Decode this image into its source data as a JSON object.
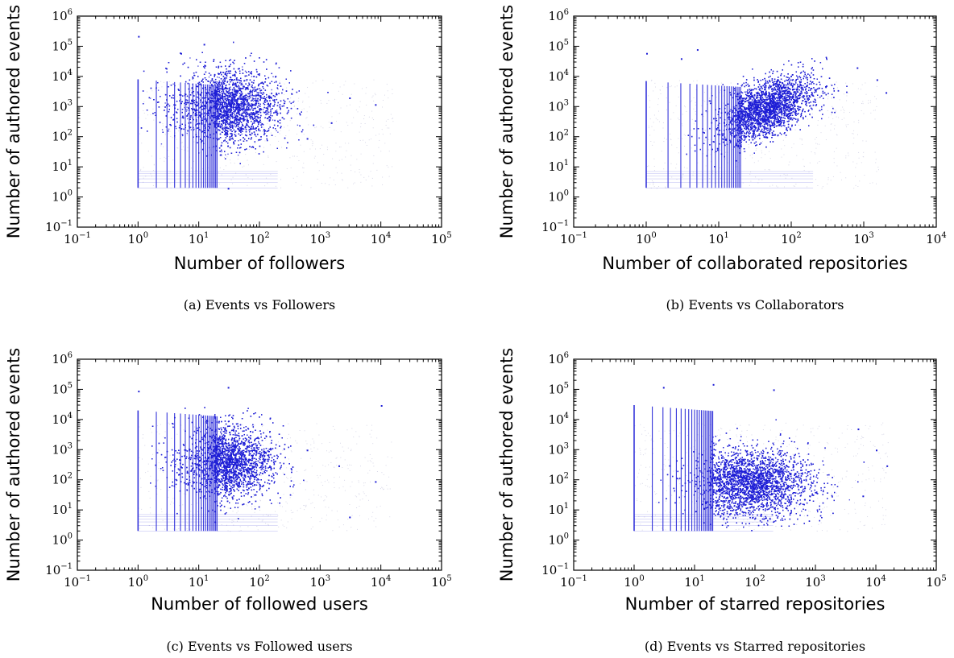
{
  "figure": {
    "panels": [
      {
        "caption": "(a) Events vs Followers",
        "chart_data": {
          "type": "scatter",
          "xlabel": "Number of followers",
          "ylabel": "Number of authored events",
          "xscale": "log",
          "yscale": "log",
          "xlim": [
            0.1,
            100000
          ],
          "ylim": [
            0.1,
            1000000
          ],
          "xticks": [
            "10^-1",
            "10^0",
            "10^1",
            "10^2",
            "10^3",
            "10^4",
            "10^5"
          ],
          "yticks": [
            "10^-1",
            "10^0",
            "10^1",
            "10^2",
            "10^3",
            "10^4",
            "10^5",
            "10^6"
          ],
          "color": "#1f1fd6",
          "stripe_x_max": 20,
          "stripe_y_range": [
            2,
            8000
          ],
          "cloud_center": [
            25,
            1000
          ],
          "cloud_spread": [
            0.45,
            0.6
          ],
          "cloud_tilt": 0,
          "outliers": [
            [
              1,
              220000
            ],
            [
              8000,
              1200
            ],
            [
              600,
              90
            ],
            [
              1500,
              300
            ],
            [
              5,
              60000
            ],
            [
              12,
              120000
            ],
            [
              3000,
              2000
            ],
            [
              30,
              2
            ]
          ]
        }
      },
      {
        "caption": "(b) Events vs Collaborators",
        "chart_data": {
          "type": "scatter",
          "xlabel": "Number of collaborated repositories",
          "ylabel": "Number of authored events",
          "xscale": "log",
          "yscale": "log",
          "xlim": [
            0.1,
            10000
          ],
          "ylim": [
            0.1,
            1000000
          ],
          "xticks": [
            "10^-1",
            "10^0",
            "10^1",
            "10^2",
            "10^3",
            "10^4"
          ],
          "yticks": [
            "10^-1",
            "10^0",
            "10^1",
            "10^2",
            "10^3",
            "10^4",
            "10^5",
            "10^6"
          ],
          "color": "#1f1fd6",
          "stripe_x_max": 20,
          "stripe_y_range": [
            2,
            7000
          ],
          "cloud_center": [
            40,
            800
          ],
          "cloud_spread": [
            0.35,
            0.45
          ],
          "cloud_tilt": 0.9,
          "outliers": [
            [
              1,
              60000
            ],
            [
              5,
              80000
            ],
            [
              800,
              20000
            ],
            [
              1500,
              8000
            ],
            [
              3,
              40000
            ],
            [
              300,
              5000
            ],
            [
              2000,
              3000
            ]
          ]
        }
      },
      {
        "caption": "(c) Events vs Followed users",
        "chart_data": {
          "type": "scatter",
          "xlabel": "Number of followed users",
          "ylabel": "Number of authored events",
          "xscale": "log",
          "yscale": "log",
          "xlim": [
            0.1,
            100000
          ],
          "ylim": [
            0.1,
            1000000
          ],
          "xticks": [
            "10^-1",
            "10^0",
            "10^1",
            "10^2",
            "10^3",
            "10^4",
            "10^5"
          ],
          "yticks": [
            "10^-1",
            "10^0",
            "10^1",
            "10^2",
            "10^3",
            "10^4",
            "10^5",
            "10^6"
          ],
          "color": "#1f1fd6",
          "stripe_x_max": 20,
          "stripe_y_range": [
            2,
            20000
          ],
          "cloud_center": [
            25,
            400
          ],
          "cloud_spread": [
            0.4,
            0.6
          ],
          "cloud_tilt": 0,
          "outliers": [
            [
              8000,
              90
            ],
            [
              10000,
              30000
            ],
            [
              30,
              120000
            ],
            [
              1,
              90000
            ],
            [
              3000,
              6
            ],
            [
              600,
              1000
            ],
            [
              2000,
              300
            ]
          ]
        }
      },
      {
        "caption": "(d) Events vs Starred repositories",
        "chart_data": {
          "type": "scatter",
          "xlabel": "Number of starred repositories",
          "ylabel": "Number of authored events",
          "xscale": "log",
          "yscale": "log",
          "xlim": [
            0.1,
            100000
          ],
          "ylim": [
            0.1,
            1000000
          ],
          "xticks": [
            "10^-1",
            "10^0",
            "10^1",
            "10^2",
            "10^3",
            "10^4",
            "10^5"
          ],
          "yticks": [
            "10^-1",
            "10^0",
            "10^1",
            "10^2",
            "10^3",
            "10^4",
            "10^5",
            "10^6"
          ],
          "color": "#1f1fd6",
          "stripe_x_max": 20,
          "stripe_y_range": [
            2,
            30000
          ],
          "cloud_center": [
            80,
            80
          ],
          "cloud_spread": [
            0.5,
            0.55
          ],
          "cloud_tilt": 0,
          "outliers": [
            [
              15000,
              300
            ],
            [
              5000,
              5000
            ],
            [
              3,
              120000
            ],
            [
              20,
              150000
            ],
            [
              200,
              100000
            ],
            [
              6000,
              30
            ],
            [
              10000,
              1000
            ]
          ]
        }
      }
    ]
  }
}
